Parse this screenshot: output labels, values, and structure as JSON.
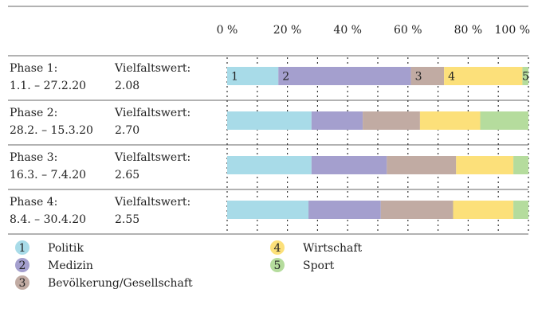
{
  "chart_data": {
    "type": "stacked-bar-horizontal",
    "categories": [
      "Phase 1:",
      "Phase 2:",
      "Phase 3:",
      "Phase 4:"
    ],
    "dates": [
      "1.1. – 27.2.20",
      "28.2. – 15.3.20",
      "16.3. – 7.4.20",
      "8.4. – 30.4.20"
    ],
    "score_label": "Vielfaltswert:",
    "scores": [
      "2.08",
      "2.70",
      "2.65",
      "2.55"
    ],
    "series": [
      {
        "number": "1",
        "name": "Politik",
        "color": "#a8dbe8",
        "values": [
          17,
          28,
          28,
          27
        ]
      },
      {
        "number": "2",
        "name": "Medizin",
        "color": "#a49fce",
        "values": [
          44,
          17,
          25,
          24
        ]
      },
      {
        "number": "3",
        "name": "Bevölkerung/Gesellschaft",
        "color": "#c1aba3",
        "values": [
          11,
          19,
          23,
          24
        ]
      },
      {
        "number": "4",
        "name": "Wirtschaft",
        "color": "#fce07a",
        "values": [
          26,
          20,
          19,
          20
        ]
      },
      {
        "number": "5",
        "name": "Sport",
        "color": "#b5dc9d",
        "values": [
          2,
          16,
          5,
          5
        ]
      }
    ],
    "xlim": [
      0,
      100
    ],
    "xticks": [
      {
        "value": 0,
        "label": "0 %"
      },
      {
        "value": 20,
        "label": "20 %"
      },
      {
        "value": 40,
        "label": "40 %"
      },
      {
        "value": 60,
        "label": "60 %"
      },
      {
        "value": 80,
        "label": "80 %"
      },
      {
        "value": 100,
        "label": "100 %"
      }
    ],
    "minor_ticks": [
      10,
      30,
      50,
      70,
      90
    ],
    "grid": true
  }
}
